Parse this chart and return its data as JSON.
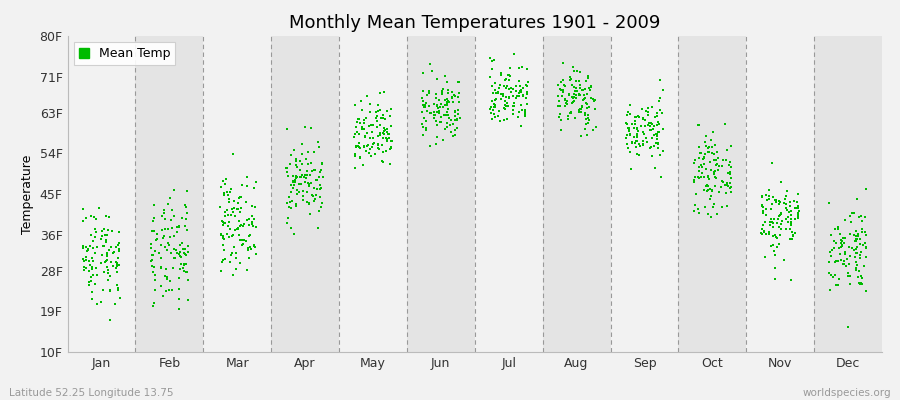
{
  "title": "Monthly Mean Temperatures 1901 - 2009",
  "ylabel": "Temperature",
  "lat_lon_label": "Latitude 52.25 Longitude 13.75",
  "source_label": "worldspecies.org",
  "legend_label": "Mean Temp",
  "months": [
    "Jan",
    "Feb",
    "Mar",
    "Apr",
    "May",
    "Jun",
    "Jul",
    "Aug",
    "Sep",
    "Oct",
    "Nov",
    "Dec"
  ],
  "yticks": [
    10,
    19,
    28,
    36,
    45,
    54,
    63,
    71,
    80
  ],
  "ytick_labels": [
    "10F",
    "19F",
    "28F",
    "36F",
    "45F",
    "54F",
    "63F",
    "71F",
    "80F"
  ],
  "ylim": [
    10,
    80
  ],
  "dot_color": "#00bb00",
  "bg_color": "#f2f2f2",
  "stripe_color_light": "#f2f2f2",
  "stripe_color_dark": "#e4e4e4",
  "title_fontsize": 13,
  "axis_label_fontsize": 9,
  "tick_label_fontsize": 9,
  "legend_fontsize": 9,
  "dot_size": 4,
  "seed": 42,
  "n_years": 109,
  "monthly_mean_f": [
    31.5,
    31.5,
    38.5,
    48.0,
    57.5,
    63.5,
    67.0,
    66.0,
    59.0,
    49.5,
    39.5,
    33.0
  ],
  "monthly_std_f": [
    5.5,
    6.0,
    5.0,
    4.5,
    4.0,
    3.5,
    3.5,
    3.5,
    3.5,
    4.0,
    4.5,
    5.0
  ],
  "jitter_range": 0.28
}
